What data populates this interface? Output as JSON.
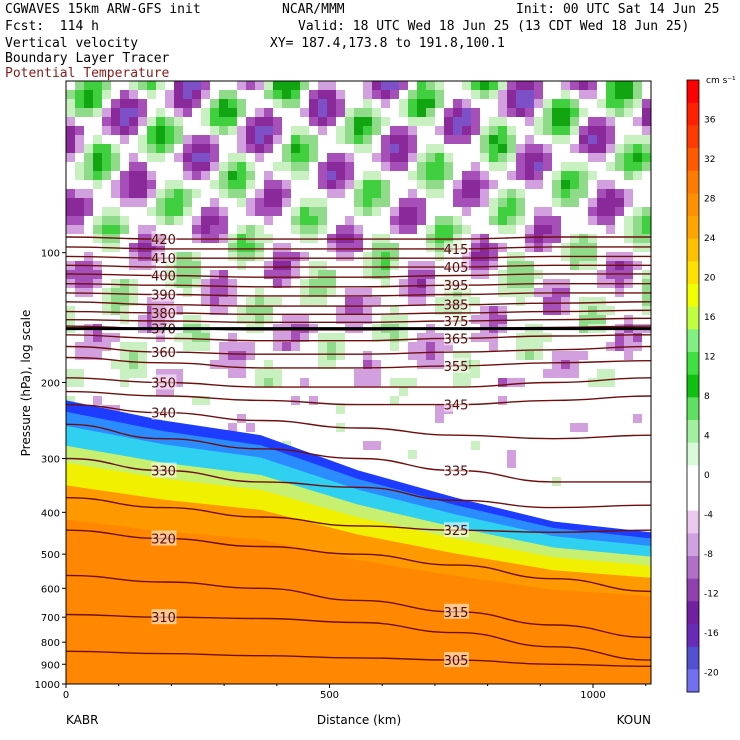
{
  "header": {
    "model": "CGWAVES 15km ARW-GFS init",
    "org": "NCAR/MMM",
    "init": "Init: 00 UTC Sat 14 Jun 25",
    "fcst": "Fcst:  114 h",
    "valid": "Valid: 18 UTC Wed 18 Jun 25 (13 CDT Wed 18 Jun 25)",
    "field1": "Vertical velocity",
    "xy": "XY= 187.4,173.8 to 191.8,100.1",
    "field2": "Boundary Layer Tracer",
    "field3": "Potential Temperature",
    "field3_color": "#8b1a1a"
  },
  "axes": {
    "ylabel": "Pressure (hPa), log scale",
    "xlabel": "Distance (km)",
    "left_station": "KABR",
    "right_station": "KOUN",
    "x_ticks": [
      "0",
      "500",
      "1000"
    ],
    "y_ticks": [
      "100",
      "200",
      "300",
      "400",
      "500",
      "600",
      "700",
      "800",
      "900",
      "1000"
    ]
  },
  "colorbar": {
    "unit": "cm s⁻¹",
    "labels": [
      "36",
      "32",
      "28",
      "24",
      "20",
      "16",
      "12",
      "8",
      "4",
      "0",
      "-4",
      "-8",
      "-12",
      "-16",
      "-20"
    ]
  },
  "chart_data": {
    "type": "heatmap",
    "title": "Vertical velocity / Boundary Layer Tracer / Potential Temperature",
    "xlabel": "Distance (km)",
    "ylabel": "Pressure (hPa), log scale",
    "x_range": [
      0,
      1110
    ],
    "y_range_hPa": [
      1000,
      40
    ],
    "y_scale": "log",
    "colorbar_range": [
      -22,
      40
    ],
    "theta_isentropes": [
      {
        "value": 305,
        "p": [
          840,
          850,
          860,
          870,
          880,
          900,
          910
        ]
      },
      {
        "value": 310,
        "p": [
          690,
          700,
          705,
          720,
          760,
          820,
          880
        ]
      },
      {
        "value": 315,
        "p": [
          560,
          580,
          600,
          640,
          680,
          730,
          780
        ]
      },
      {
        "value": 320,
        "p": [
          440,
          460,
          480,
          500,
          530,
          570,
          610
        ]
      },
      {
        "value": 325,
        "p": [
          370,
          390,
          410,
          430,
          440,
          445,
          440
        ]
      },
      {
        "value": 330,
        "p": [
          300,
          320,
          340,
          350,
          375,
          390,
          385
        ]
      },
      {
        "value": 335,
        "p": [
          250,
          270,
          285,
          300,
          320,
          340,
          340
        ]
      },
      {
        "value": 340,
        "p": [
          225,
          235,
          245,
          255,
          265,
          270,
          265
        ]
      },
      {
        "value": 345,
        "p": [
          210,
          215,
          220,
          225,
          225,
          220,
          215
        ]
      },
      {
        "value": 350,
        "p": [
          195,
          200,
          205,
          205,
          205,
          200,
          195
        ]
      },
      {
        "value": 355,
        "p": [
          175,
          180,
          185,
          185,
          183,
          180,
          178
        ]
      },
      {
        "value": 360,
        "p": [
          165,
          170,
          172,
          172,
          170,
          168,
          165
        ]
      },
      {
        "value": 365,
        "p": [
          155,
          158,
          160,
          160,
          158,
          156,
          155
        ]
      },
      {
        "value": 370,
        "p": [
          148,
          150,
          151,
          151,
          150,
          149,
          148
        ]
      },
      {
        "value": 375,
        "p": [
          143,
          144,
          145,
          145,
          144,
          143,
          142
        ]
      },
      {
        "value": 380,
        "p": [
          137,
          138,
          139,
          139,
          138,
          137,
          136
        ]
      },
      {
        "value": 385,
        "p": [
          130,
          132,
          133,
          133,
          132,
          131,
          130
        ]
      },
      {
        "value": 390,
        "p": [
          124,
          125,
          126,
          126,
          125,
          124,
          124
        ]
      },
      {
        "value": 395,
        "p": [
          118,
          119,
          120,
          120,
          119,
          118,
          118
        ]
      },
      {
        "value": 400,
        "p": [
          112,
          113,
          114,
          114,
          113,
          112,
          112
        ]
      },
      {
        "value": 405,
        "p": [
          107,
          108,
          108,
          108,
          108,
          107,
          107
        ]
      },
      {
        "value": 410,
        "p": [
          102,
          103,
          103,
          103,
          103,
          102,
          102
        ]
      },
      {
        "value": 415,
        "p": [
          97,
          98,
          98,
          98,
          98,
          97,
          97
        ]
      },
      {
        "value": 420,
        "p": [
          92,
          93,
          93,
          93,
          93,
          92,
          92
        ]
      }
    ],
    "theta_x_km": [
      0,
      185,
      370,
      555,
      740,
      925,
      1110
    ],
    "boundary_layer_top_hPa": [
      220,
      245,
      265,
      320,
      370,
      420,
      445
    ],
    "tropopause_line_hPa": 150
  }
}
